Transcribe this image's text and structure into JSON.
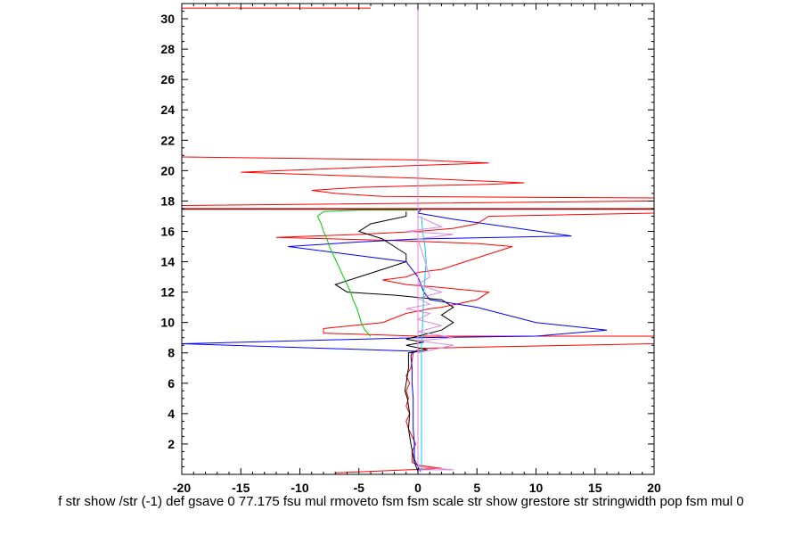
{
  "chart_data": {
    "type": "line",
    "title": "",
    "xlabel": "f str show /str (-1) def gsave 0 77.175 fsu mul rmoveto fsm fsm scale str show grestore str stringwidth pop fsm mul 0",
    "ylabel": "",
    "xlim": [
      -20,
      20
    ],
    "ylim": [
      0,
      31
    ],
    "xticks": [
      -20,
      -15,
      -10,
      -5,
      0,
      5,
      10,
      15,
      20
    ],
    "yticks": [
      2,
      4,
      6,
      8,
      10,
      12,
      14,
      16,
      18,
      20,
      22,
      24,
      26,
      28,
      30
    ],
    "grid": false,
    "legend": "none",
    "series": [
      {
        "color": "#ff0000",
        "points": [
          [
            -7,
            0.1
          ],
          [
            2,
            0.4
          ],
          [
            1,
            0.5
          ],
          [
            0,
            0.6
          ],
          [
            -0.5,
            0.8
          ],
          [
            -0.5,
            1.5
          ],
          [
            -0.2,
            2
          ],
          [
            -0.5,
            2.5
          ],
          [
            -0.8,
            3
          ],
          [
            -1,
            3.5
          ],
          [
            -0.7,
            4
          ],
          [
            -1,
            4.5
          ],
          [
            -0.8,
            5
          ],
          [
            -1,
            5.5
          ],
          [
            -0.7,
            6
          ],
          [
            -1,
            6.5
          ],
          [
            -0.6,
            7
          ],
          [
            -0.5,
            7.5
          ],
          [
            -0.4,
            8
          ],
          [
            0.2,
            8.3
          ],
          [
            20,
            8.6
          ],
          [
            20,
            9.1
          ],
          [
            0,
            9.1
          ],
          [
            -8,
            9.3
          ],
          [
            -8,
            9.6
          ],
          [
            -3,
            10
          ],
          [
            -2,
            10.3
          ],
          [
            -1,
            10.6
          ],
          [
            1,
            10.9
          ],
          [
            2,
            11
          ],
          [
            5,
            11.5
          ],
          [
            6,
            12
          ],
          [
            2,
            12.3
          ],
          [
            -1,
            12.5
          ],
          [
            -3,
            12.8
          ],
          [
            -1,
            13
          ],
          [
            0,
            13.3
          ],
          [
            2,
            13.5
          ],
          [
            4,
            14
          ],
          [
            6,
            14.5
          ],
          [
            8,
            15
          ],
          [
            5,
            15.2
          ],
          [
            -2,
            15.4
          ],
          [
            -12,
            15.6
          ],
          [
            -5,
            15.8
          ],
          [
            0,
            16
          ],
          [
            3,
            16.2
          ],
          [
            5,
            16.5
          ],
          [
            6,
            17
          ],
          [
            20,
            17.2
          ],
          [
            20,
            17.5
          ],
          [
            -20,
            17.5
          ],
          [
            -20,
            17.7
          ],
          [
            20,
            18
          ],
          [
            20,
            18.2
          ],
          [
            -3,
            18.3
          ],
          [
            -7,
            18.5
          ],
          [
            -9,
            18.7
          ],
          [
            -5,
            18.9
          ],
          [
            0,
            19
          ],
          [
            6,
            19.1
          ],
          [
            9,
            19.2
          ],
          [
            0,
            19.5
          ],
          [
            -15,
            19.9
          ],
          [
            -5,
            20.2
          ],
          [
            6,
            20.5
          ],
          [
            0,
            20.7
          ],
          [
            -20,
            20.9
          ]
        ]
      },
      {
        "color": "#ff0000",
        "points": [
          [
            -20,
            30.7
          ],
          [
            -4,
            30.7
          ]
        ]
      },
      {
        "color": "#0000ff",
        "points": [
          [
            0.2,
            0.2
          ],
          [
            0,
            0.5
          ],
          [
            -0.3,
            1
          ],
          [
            -0.3,
            2
          ],
          [
            -0.4,
            3
          ],
          [
            -0.4,
            4
          ],
          [
            -0.4,
            5
          ],
          [
            -0.5,
            6
          ],
          [
            -0.5,
            7
          ],
          [
            -0.6,
            7.8
          ],
          [
            -0.5,
            8
          ],
          [
            0,
            8.1
          ],
          [
            -20,
            8.6
          ],
          [
            0,
            9
          ],
          [
            10,
            9.1
          ],
          [
            16,
            9.5
          ],
          [
            10,
            10
          ],
          [
            5,
            11
          ],
          [
            1,
            11.5
          ],
          [
            0.5,
            12
          ],
          [
            0,
            13
          ],
          [
            -1,
            14
          ],
          [
            -6,
            14.5
          ],
          [
            -11,
            15
          ],
          [
            -5,
            15.3
          ],
          [
            0,
            15.5
          ],
          [
            13,
            15.7
          ],
          [
            3,
            16.8
          ],
          [
            0,
            17.2
          ],
          [
            0.3,
            17.5
          ]
        ]
      },
      {
        "color": "#000000",
        "points": [
          [
            0,
            0.2
          ],
          [
            -0.3,
            0.8
          ],
          [
            -0.6,
            2
          ],
          [
            -0.8,
            3
          ],
          [
            -0.7,
            4
          ],
          [
            -0.9,
            5
          ],
          [
            -1.1,
            5.5
          ],
          [
            -1,
            6
          ],
          [
            -0.8,
            7
          ],
          [
            -0.8,
            8
          ],
          [
            0.8,
            8.2
          ],
          [
            -1,
            8.5
          ],
          [
            0.5,
            8.7
          ],
          [
            -1,
            8.9
          ],
          [
            0,
            9.1
          ],
          [
            2,
            9.5
          ],
          [
            3,
            10
          ],
          [
            2,
            10.5
          ],
          [
            3,
            11
          ],
          [
            2,
            11.5
          ],
          [
            -2,
            11.8
          ],
          [
            -6,
            12
          ],
          [
            -7,
            12.5
          ],
          [
            -5,
            13
          ],
          [
            -3,
            13.5
          ],
          [
            -1,
            14
          ],
          [
            -1,
            14.5
          ],
          [
            -2,
            15
          ],
          [
            -3,
            15.5
          ],
          [
            -5,
            16
          ],
          [
            -4,
            16.5
          ],
          [
            -1,
            17
          ],
          [
            -1,
            17.3
          ]
        ]
      },
      {
        "color": "#00cc00",
        "points": [
          [
            -4,
            9.1
          ],
          [
            -4.5,
            9.5
          ],
          [
            -4.8,
            10
          ],
          [
            -5,
            10.5
          ],
          [
            -5.2,
            11
          ],
          [
            -5.5,
            11.5
          ],
          [
            -5.7,
            12
          ],
          [
            -6,
            12.5
          ],
          [
            -6.3,
            13
          ],
          [
            -6.6,
            13.5
          ],
          [
            -6.9,
            14
          ],
          [
            -7.2,
            14.5
          ],
          [
            -7.5,
            15
          ],
          [
            -7.7,
            15.5
          ],
          [
            -8,
            16
          ],
          [
            -8.2,
            16.5
          ],
          [
            -8.5,
            17
          ],
          [
            -8,
            17.3
          ],
          [
            -5,
            17.4
          ],
          [
            0,
            17.4
          ]
        ]
      },
      {
        "color": "#00ccff",
        "points": [
          [
            0.3,
            0.2
          ],
          [
            0.3,
            1
          ],
          [
            0.3,
            3
          ],
          [
            0.3,
            5
          ],
          [
            0.3,
            7
          ],
          [
            0.3,
            8.5
          ],
          [
            0.4,
            10
          ],
          [
            0.5,
            12
          ],
          [
            0.6,
            13
          ],
          [
            0.7,
            14
          ],
          [
            0.6,
            15
          ],
          [
            0.4,
            16
          ],
          [
            0.3,
            17
          ]
        ]
      },
      {
        "color": "#dd88dd",
        "points": [
          [
            0,
            0.3
          ],
          [
            3,
            0.3
          ],
          [
            0,
            0.5
          ],
          [
            0,
            30.7
          ]
        ]
      },
      {
        "color": "#dd88dd",
        "points": [
          [
            0,
            8
          ],
          [
            3,
            8.5
          ],
          [
            0,
            8.8
          ],
          [
            3,
            9
          ],
          [
            0,
            9.4
          ],
          [
            2,
            9.8
          ],
          [
            0,
            10.2
          ],
          [
            1,
            10.6
          ],
          [
            -1,
            10.9
          ],
          [
            1,
            11.2
          ],
          [
            0,
            11.6
          ],
          [
            2,
            12
          ],
          [
            0,
            12.5
          ],
          [
            1,
            13
          ],
          [
            0,
            15.5
          ],
          [
            3,
            15.8
          ],
          [
            -1,
            16
          ],
          [
            2,
            16.3
          ],
          [
            0,
            17
          ]
        ]
      },
      {
        "color": "#660000",
        "points": [
          [
            -20,
            17.45
          ],
          [
            20,
            17.45
          ]
        ]
      }
    ]
  }
}
